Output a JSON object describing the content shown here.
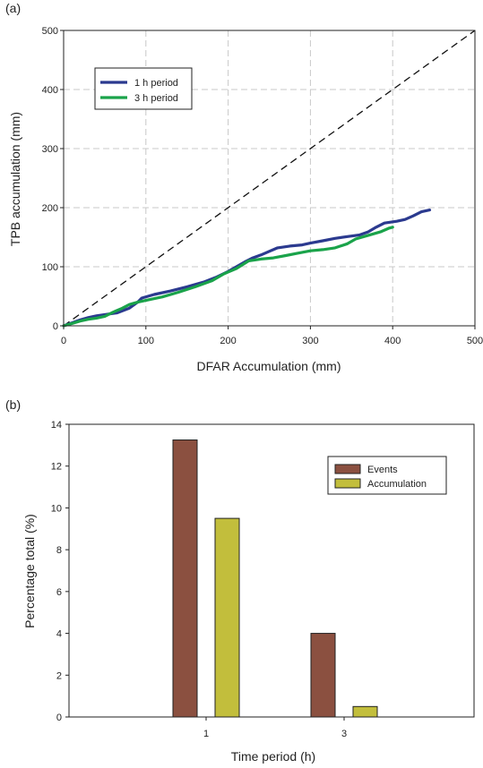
{
  "chart_data": [
    {
      "panel_label": "(a)",
      "type": "line",
      "xlabel": "DFAR Accumulation (mm)",
      "ylabel": "TPB accumulation (mm)",
      "xlim": [
        0,
        500
      ],
      "ylim": [
        0,
        500
      ],
      "xticks": [
        0,
        100,
        200,
        300,
        400,
        500
      ],
      "yticks": [
        0,
        100,
        200,
        300,
        400,
        500
      ],
      "grid": true,
      "legend": "upper-left",
      "series": [
        {
          "name": "1 h period",
          "color": "#2b3a8f",
          "points": [
            [
              0,
              0
            ],
            [
              10,
              5
            ],
            [
              20,
              10
            ],
            [
              30,
              14
            ],
            [
              40,
              17
            ],
            [
              55,
              20
            ],
            [
              65,
              22
            ],
            [
              80,
              30
            ],
            [
              90,
              40
            ],
            [
              95,
              47
            ],
            [
              110,
              53
            ],
            [
              130,
              59
            ],
            [
              150,
              66
            ],
            [
              170,
              74
            ],
            [
              185,
              82
            ],
            [
              200,
              92
            ],
            [
              210,
              100
            ],
            [
              220,
              108
            ],
            [
              230,
              115
            ],
            [
              240,
              120
            ],
            [
              250,
              126
            ],
            [
              260,
              132
            ],
            [
              275,
              135
            ],
            [
              290,
              137
            ],
            [
              300,
              140
            ],
            [
              315,
              144
            ],
            [
              330,
              148
            ],
            [
              345,
              151
            ],
            [
              360,
              154
            ],
            [
              370,
              159
            ],
            [
              380,
              167
            ],
            [
              390,
              174
            ],
            [
              405,
              177
            ],
            [
              415,
              180
            ],
            [
              425,
              186
            ],
            [
              435,
              193
            ],
            [
              445,
              196
            ]
          ]
        },
        {
          "name": "3 h period",
          "color": "#1aa34a",
          "points": [
            [
              0,
              0
            ],
            [
              10,
              4
            ],
            [
              20,
              8
            ],
            [
              30,
              11
            ],
            [
              40,
              13
            ],
            [
              50,
              16
            ],
            [
              60,
              23
            ],
            [
              70,
              29
            ],
            [
              80,
              36
            ],
            [
              90,
              40
            ],
            [
              100,
              43
            ],
            [
              120,
              49
            ],
            [
              140,
              57
            ],
            [
              160,
              66
            ],
            [
              180,
              76
            ],
            [
              195,
              88
            ],
            [
              210,
              97
            ],
            [
              225,
              110
            ],
            [
              240,
              113
            ],
            [
              255,
              115
            ],
            [
              270,
              119
            ],
            [
              285,
              123
            ],
            [
              300,
              127
            ],
            [
              315,
              129
            ],
            [
              330,
              132
            ],
            [
              345,
              139
            ],
            [
              355,
              147
            ],
            [
              365,
              151
            ],
            [
              375,
              155
            ],
            [
              385,
              159
            ],
            [
              395,
              165
            ],
            [
              400,
              167
            ]
          ]
        },
        {
          "name": "",
          "style": "dashed",
          "color": "#111111",
          "points": [
            [
              0,
              0
            ],
            [
              500,
              500
            ]
          ]
        }
      ]
    },
    {
      "panel_label": "(b)",
      "type": "bar",
      "xlabel": "Time period (h)",
      "ylabel": "Percentage total (%)",
      "categories": [
        "1",
        "3"
      ],
      "ylim": [
        0,
        14
      ],
      "yticks": [
        0,
        2,
        4,
        6,
        8,
        10,
        12,
        14
      ],
      "legend": "upper-right",
      "series": [
        {
          "name": "Events",
          "color": "#8b5040",
          "values": [
            13.25,
            4.0
          ]
        },
        {
          "name": "Accumulation",
          "color": "#c2be3c",
          "values": [
            9.5,
            0.5
          ]
        }
      ]
    }
  ]
}
